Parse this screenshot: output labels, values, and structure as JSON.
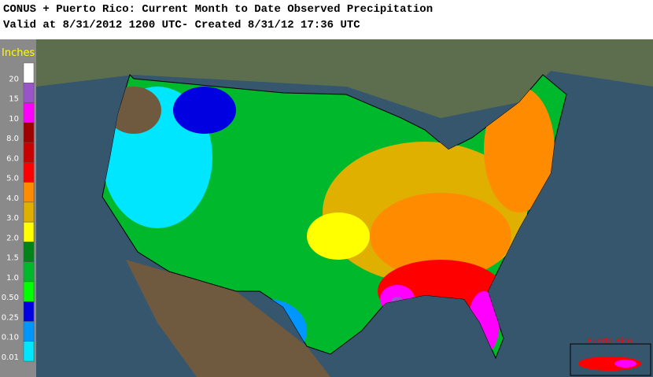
{
  "header": {
    "title": "CONUS + Puerto Rico: Current Month to Date Observed Precipitation",
    "subtitle": "Valid at 8/31/2012 1200 UTC- Created 8/31/12 17:36 UTC"
  },
  "legend": {
    "title": "Inches",
    "labels": [
      "20",
      "15",
      "10",
      "8.0",
      "6.0",
      "5.0",
      "4.0",
      "3.0",
      "2.0",
      "1.5",
      "1.0",
      "0.50",
      "0.25",
      "0.10",
      "0.01"
    ],
    "colors": [
      "#ffffff",
      "#9954c9",
      "#ff00ff",
      "#9e0000",
      "#c80000",
      "#ff0000",
      "#ff8c00",
      "#e0b000",
      "#ffff00",
      "#00841a",
      "#00b82c",
      "#00ff00",
      "#0000e0",
      "#0096ff",
      "#00e6ff"
    ]
  },
  "inset": {
    "label": "Puerto Rico"
  }
}
